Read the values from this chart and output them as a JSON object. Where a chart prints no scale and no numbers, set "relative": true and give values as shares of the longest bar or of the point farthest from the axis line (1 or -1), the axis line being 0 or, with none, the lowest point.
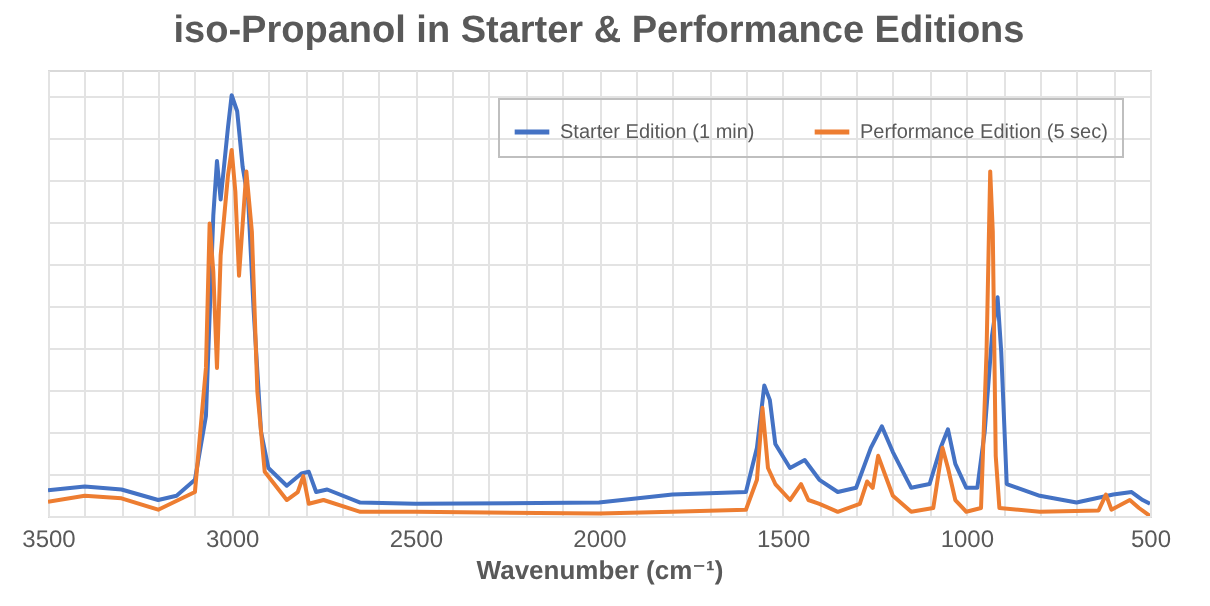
{
  "chart_data": {
    "type": "line",
    "title": "iso-Propanol in Starter & Performance Editions",
    "xlabel": "Wavenumber (cm⁻¹)",
    "relative": true,
    "grid": true,
    "legend": "top right",
    "marker": "none",
    "line_style": "solid",
    "xlim": [
      3500,
      500
    ],
    "xticks": [
      3500,
      {
        "value": 3400,
        "label": null
      },
      {
        "value": 3300,
        "label": null
      },
      {
        "value": 3200,
        "label": null
      },
      {
        "value": 3100,
        "label": null
      },
      3000,
      {
        "value": 2900,
        "label": null
      },
      {
        "value": 2800,
        "label": null
      },
      {
        "value": 2700,
        "label": null
      },
      {
        "value": 2600,
        "label": null
      },
      2500,
      {
        "value": 2400,
        "label": null
      },
      {
        "value": 2300,
        "label": null
      },
      {
        "value": 2200,
        "label": null
      },
      {
        "value": 2100,
        "label": null
      },
      2000,
      {
        "value": 1900,
        "label": null
      },
      {
        "value": 1800,
        "label": null
      },
      {
        "value": 1700,
        "label": null
      },
      {
        "value": 1600,
        "label": null
      },
      1500,
      {
        "value": 1400,
        "label": null
      },
      {
        "value": 1300,
        "label": null
      },
      {
        "value": 1200,
        "label": null
      },
      {
        "value": 1100,
        "label": null
      },
      1000,
      {
        "value": 900,
        "label": null
      },
      {
        "value": 800,
        "label": null
      },
      {
        "value": 700,
        "label": null
      },
      {
        "value": 600,
        "label": null
      },
      500
    ],
    "series": [
      {
        "name": "Starter Edition (1 min)",
        "color": "#4472c4",
        "x": [
          3500,
          3400,
          3300,
          3200,
          3150,
          3100,
          3070,
          3050,
          3040,
          3030,
          3010,
          3000,
          2985,
          2970,
          2955,
          2940,
          2920,
          2900,
          2850,
          2810,
          2790,
          2770,
          2740,
          2650,
          2500,
          2000,
          1800,
          1600,
          1570,
          1550,
          1535,
          1520,
          1480,
          1440,
          1400,
          1350,
          1300,
          1260,
          1230,
          1200,
          1150,
          1100,
          1070,
          1050,
          1030,
          1000,
          970,
          950,
          930,
          915,
          905,
          890,
          800,
          700,
          600,
          550,
          520,
          500
        ],
        "values": [
          0.061,
          0.07,
          0.063,
          0.038,
          0.048,
          0.086,
          0.238,
          0.714,
          0.844,
          0.752,
          0.924,
          1.0,
          0.962,
          0.829,
          0.752,
          0.486,
          0.2,
          0.114,
          0.072,
          0.101,
          0.105,
          0.057,
          0.063,
          0.032,
          0.029,
          0.032,
          0.051,
          0.057,
          0.162,
          0.31,
          0.276,
          0.171,
          0.114,
          0.133,
          0.086,
          0.057,
          0.067,
          0.162,
          0.213,
          0.152,
          0.067,
          0.076,
          0.162,
          0.206,
          0.124,
          0.067,
          0.067,
          0.2,
          0.429,
          0.52,
          0.39,
          0.076,
          0.048,
          0.032,
          0.051,
          0.057,
          0.038,
          0.029
        ]
      },
      {
        "name": "Performance Edition (5 sec)",
        "color": "#ed7d31",
        "x": [
          3500,
          3400,
          3300,
          3200,
          3100,
          3070,
          3060,
          3050,
          3040,
          3030,
          3010,
          3000,
          2990,
          2980,
          2970,
          2960,
          2945,
          2930,
          2910,
          2850,
          2820,
          2805,
          2790,
          2750,
          2650,
          2500,
          2000,
          1800,
          1600,
          1570,
          1555,
          1540,
          1520,
          1480,
          1450,
          1430,
          1400,
          1350,
          1290,
          1270,
          1255,
          1240,
          1220,
          1200,
          1150,
          1090,
          1065,
          1050,
          1030,
          1000,
          960,
          945,
          935,
          928,
          920,
          910,
          800,
          640,
          620,
          605,
          555,
          530,
          500
        ],
        "values": [
          0.034,
          0.048,
          0.042,
          0.015,
          0.057,
          0.352,
          0.695,
          0.581,
          0.352,
          0.619,
          0.81,
          0.87,
          0.771,
          0.571,
          0.695,
          0.819,
          0.676,
          0.295,
          0.105,
          0.038,
          0.057,
          0.095,
          0.029,
          0.038,
          0.01,
          0.01,
          0.006,
          0.01,
          0.015,
          0.086,
          0.257,
          0.114,
          0.076,
          0.038,
          0.076,
          0.038,
          0.029,
          0.01,
          0.029,
          0.082,
          0.067,
          0.143,
          0.095,
          0.048,
          0.01,
          0.019,
          0.162,
          0.114,
          0.038,
          0.01,
          0.019,
          0.39,
          0.819,
          0.676,
          0.143,
          0.019,
          0.01,
          0.013,
          0.051,
          0.015,
          0.038,
          0.019,
          0.0
        ]
      }
    ]
  }
}
